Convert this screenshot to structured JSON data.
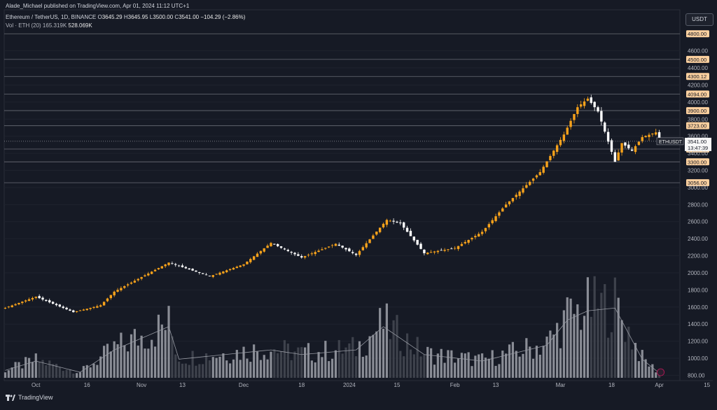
{
  "header": {
    "publisher": "Alade_Michael published on TradingView.com, Apr 01, 2024 11:12 UTC+1",
    "symbol": "Ethereum / TetherUS, 1D, BINANCE",
    "open_label": "O",
    "open": "3645.29",
    "high_label": "H",
    "high": "3645.95",
    "low_label": "L",
    "low": "3500.00",
    "close_label": "C",
    "close": "3541.00",
    "change": "−104.29 (−2.86%)",
    "volume_label": "Vol · ETH (20)",
    "volume_value": "165.319K",
    "volume_ma": "528.069K"
  },
  "currency_badge": "USDT",
  "footer": {
    "brand": "TradingView"
  },
  "price_tag": {
    "symbol": "ETHUSDT",
    "price": "3541.00",
    "countdown": "13:47:39"
  },
  "colors": {
    "up": "#f7a21b",
    "down": "#ffffff",
    "level_box": "#fbd09f",
    "background": "#161a25",
    "vol_up": "#8a8d96",
    "vol_down": "#3e424c"
  },
  "chart_data": {
    "type": "candlestick",
    "title": "Ethereum / TetherUS, 1D, BINANCE",
    "ylim": [
      700,
      4880
    ],
    "y_ticks": [
      800,
      1000,
      1200,
      1400,
      1600,
      1800,
      2000,
      2200,
      2400,
      2600,
      2800,
      3000,
      3200,
      3400,
      3600,
      3800,
      4000,
      4200,
      4400,
      4600
    ],
    "x_ticks": [
      "Oct",
      "16",
      "Nov",
      "13",
      "Dec",
      "18",
      "2024",
      "15",
      "Feb",
      "13",
      "Mar",
      "18",
      "Apr",
      "15"
    ],
    "horizontal_levels": [
      "4800.00",
      "4500.00",
      "4300.12",
      "4094.00",
      "3900.00",
      "3723.00",
      "3450.00",
      "3300.00",
      "3056.00"
    ],
    "key_points": [
      {
        "date": "Sep 22",
        "close": 1590
      },
      {
        "date": "Oct 1",
        "close": 1720
      },
      {
        "date": "Oct 12",
        "close": 1540
      },
      {
        "date": "Oct 20",
        "close": 1620
      },
      {
        "date": "Oct 24",
        "close": 1780
      },
      {
        "date": "Nov 9",
        "close": 2120
      },
      {
        "date": "Nov 21",
        "close": 1960
      },
      {
        "date": "Dec 1",
        "close": 2100
      },
      {
        "date": "Dec 9",
        "close": 2350
      },
      {
        "date": "Dec 18",
        "close": 2180
      },
      {
        "date": "Dec 28",
        "close": 2340
      },
      {
        "date": "Jan 3",
        "close": 2210
      },
      {
        "date": "Jan 12",
        "close": 2620
      },
      {
        "date": "Jan 16",
        "close": 2580
      },
      {
        "date": "Jan 23",
        "close": 2230
      },
      {
        "date": "Feb 1",
        "close": 2290
      },
      {
        "date": "Feb 9",
        "close": 2480
      },
      {
        "date": "Feb 16",
        "close": 2800
      },
      {
        "date": "Feb 26",
        "close": 3180
      },
      {
        "date": "Mar 4",
        "close": 3620
      },
      {
        "date": "Mar 8",
        "close": 3940
      },
      {
        "date": "Mar 11",
        "close": 4040
      },
      {
        "date": "Mar 14",
        "close": 3890
      },
      {
        "date": "Mar 19",
        "close": 3300
      },
      {
        "date": "Mar 21",
        "close": 3520
      },
      {
        "date": "Mar 24",
        "close": 3430
      },
      {
        "date": "Mar 27",
        "close": 3590
      },
      {
        "date": "Mar 31",
        "close": 3645
      },
      {
        "date": "Apr 1",
        "close": 3541
      }
    ],
    "volume_scale_max": 1.0,
    "volume_points": [
      {
        "date": "Sep 22",
        "v": 0.08
      },
      {
        "date": "Oct 1",
        "v": 0.18
      },
      {
        "date": "Oct 14",
        "v": 0.06
      },
      {
        "date": "Oct 24",
        "v": 0.3
      },
      {
        "date": "Nov 9",
        "v": 0.55
      },
      {
        "date": "Nov 12",
        "v": 0.2
      },
      {
        "date": "Dec 9",
        "v": 0.3
      },
      {
        "date": "Dec 18",
        "v": 0.25
      },
      {
        "date": "Jan 3",
        "v": 0.3
      },
      {
        "date": "Jan 11",
        "v": 0.55
      },
      {
        "date": "Jan 23",
        "v": 0.25
      },
      {
        "date": "Feb 9",
        "v": 0.18
      },
      {
        "date": "Feb 28",
        "v": 0.35
      },
      {
        "date": "Mar 5",
        "v": 0.62
      },
      {
        "date": "Mar 11",
        "v": 0.72
      },
      {
        "date": "Mar 19",
        "v": 0.75
      },
      {
        "date": "Mar 27",
        "v": 0.2
      },
      {
        "date": "Apr 1",
        "v": 0.05
      }
    ]
  }
}
